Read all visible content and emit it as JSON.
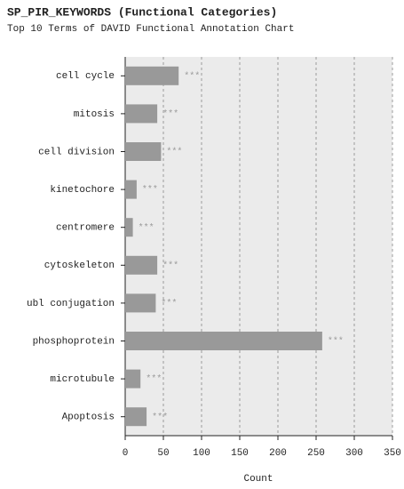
{
  "chart_data": {
    "type": "bar",
    "orientation": "horizontal",
    "title": "SP_PIR_KEYWORDS (Functional Categories)",
    "subtitle": "Top 10 Terms of DAVID Functional Annotation Chart",
    "categories": [
      "cell cycle",
      "mitosis",
      "cell division",
      "kinetochore",
      "centromere",
      "cytoskeleton",
      "ubl conjugation",
      "phosphoprotein",
      "microtubule",
      "Apoptosis"
    ],
    "values": [
      70,
      42,
      47,
      15,
      10,
      42,
      40,
      258,
      20,
      28
    ],
    "significance": [
      "***",
      "***",
      "***",
      "***",
      "***",
      "***",
      "***",
      "***",
      "***",
      "***"
    ],
    "color": "#999999",
    "xlabel": "Count",
    "xlim": [
      0,
      350
    ],
    "xticks": [
      0,
      50,
      100,
      150,
      200,
      250,
      300,
      350
    ],
    "grid": true
  }
}
